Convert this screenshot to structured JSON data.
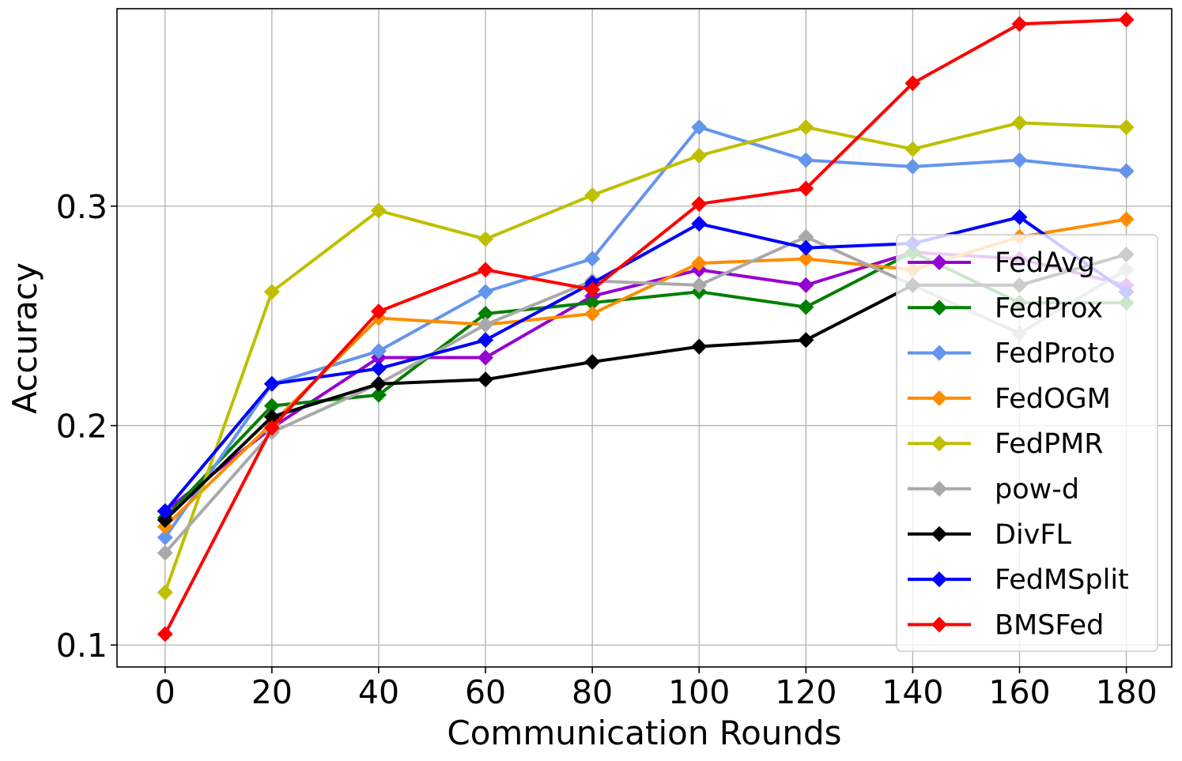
{
  "chart_data": {
    "type": "line",
    "title": "",
    "xlabel": "Communication Rounds",
    "ylabel": "Accuracy",
    "x": [
      0,
      20,
      40,
      60,
      80,
      100,
      120,
      140,
      160,
      180
    ],
    "xlim": [
      -9,
      188.5
    ],
    "ylim": [
      0.09,
      0.39
    ],
    "xticks": [
      0,
      20,
      40,
      60,
      80,
      100,
      120,
      140,
      160,
      180
    ],
    "xtick_labels": [
      "0",
      "20",
      "40",
      "60",
      "80",
      "100",
      "120",
      "140",
      "160",
      "180"
    ],
    "yticks": [
      0.1,
      0.2,
      0.3
    ],
    "ytick_labels": [
      "0.1",
      "0.2",
      "0.3"
    ],
    "grid": true,
    "legend_position": "lower-right",
    "marker": "diamond",
    "series": [
      {
        "name": "FedAvg",
        "color": "#9400D3",
        "values": [
          0.161,
          0.199,
          0.231,
          0.231,
          0.259,
          0.271,
          0.264,
          0.279,
          0.276,
          0.264
        ]
      },
      {
        "name": "FedProx",
        "color": "#008000",
        "values": [
          0.158,
          0.209,
          0.214,
          0.251,
          0.256,
          0.261,
          0.254,
          0.279,
          0.256,
          0.256
        ]
      },
      {
        "name": "FedProto",
        "color": "#6495ED",
        "values": [
          0.149,
          0.219,
          0.234,
          0.261,
          0.276,
          0.336,
          0.321,
          0.318,
          0.321,
          0.316
        ]
      },
      {
        "name": "FedOGM",
        "color": "#FF8C00",
        "values": [
          0.154,
          0.201,
          0.249,
          0.246,
          0.251,
          0.274,
          0.276,
          0.271,
          0.286,
          0.294
        ]
      },
      {
        "name": "FedPMR",
        "color": "#BFBF00",
        "values": [
          0.124,
          0.261,
          0.298,
          0.285,
          0.305,
          0.323,
          0.336,
          0.326,
          0.338,
          0.336
        ]
      },
      {
        "name": "pow-d",
        "color": "#A9A9A9",
        "values": [
          0.142,
          0.197,
          0.219,
          0.246,
          0.266,
          0.264,
          0.286,
          0.264,
          0.242,
          0.271
        ]
      },
      {
        "name": "DivFL",
        "color": "#000000",
        "values": [
          0.157,
          0.204,
          0.219,
          0.221,
          0.229,
          0.236,
          0.239,
          0.264,
          0.264,
          0.278
        ]
      },
      {
        "name": "FedMSplit",
        "color": "#0000FF",
        "values": [
          0.161,
          0.219,
          0.226,
          0.239,
          0.265,
          0.292,
          0.281,
          0.283,
          0.295,
          0.261
        ]
      },
      {
        "name": "BMSFed",
        "color": "#FF0000",
        "values": [
          0.105,
          0.199,
          0.252,
          0.271,
          0.262,
          0.301,
          0.308,
          0.356,
          0.383,
          0.385
        ]
      }
    ]
  }
}
